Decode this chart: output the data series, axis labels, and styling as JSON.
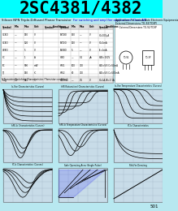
{
  "title": "2SC4381/4382",
  "title_bg": "#00FFFF",
  "title_fontsize": 18,
  "title_fontweight": "bold",
  "page_bg": "#B8E8F0",
  "graph_bg": "#C8DCE8",
  "grid_color": "#9AAFBF",
  "line_color": "#000000",
  "page_number": "501",
  "table_bg": "#FFFFFF",
  "header_row_bg": "#DDDDDD",
  "graph_titles": [
    "Ic-Vce Characteristics (Curves)",
    "hFE(Saturation) Characteristics (Curves)",
    "Ic-Vce Temperature Characteristics (Curves)",
    "hFE-Ic Characteristics (Curves)",
    "hFE-Ic Temperature Characteristics (Curves)",
    "fT-Ic Characteristics",
    "fT-Ic Characteristics (Curves)",
    "Safe Operating Area (Single Pulse)",
    "Rth-Fin Derating"
  ]
}
